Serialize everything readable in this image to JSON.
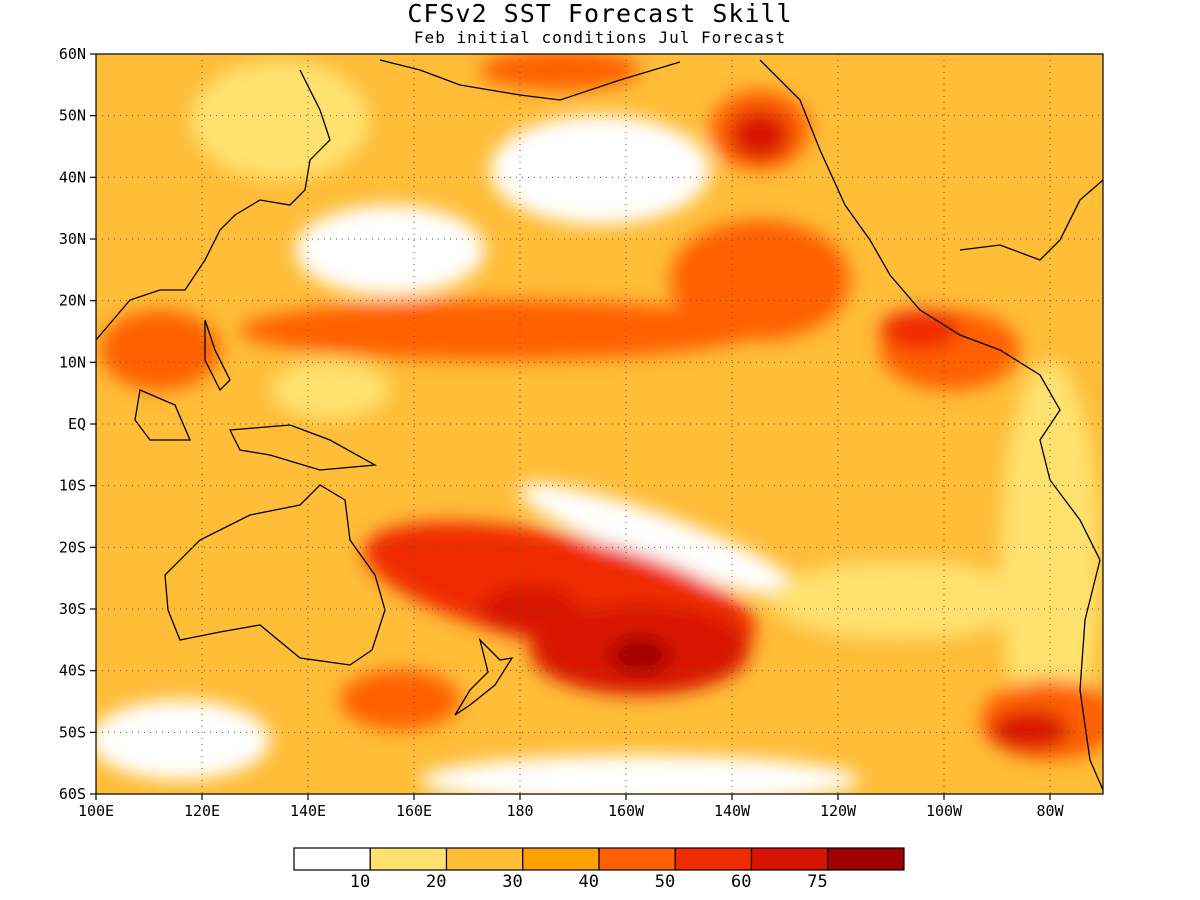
{
  "title": "CFSv2 SST Forecast Skill",
  "subtitle": "Feb initial conditions  Jul Forecast",
  "axes": {
    "lat_labels": [
      "60N",
      "50N",
      "40N",
      "30N",
      "20N",
      "10N",
      "EQ",
      "10S",
      "20S",
      "30S",
      "40S",
      "50S",
      "60S"
    ],
    "lat_values": [
      60,
      50,
      40,
      30,
      20,
      10,
      0,
      -10,
      -20,
      -30,
      -40,
      -50,
      -60
    ],
    "lon_labels": [
      "100E",
      "120E",
      "140E",
      "160E",
      "180",
      "160W",
      "140W",
      "120W",
      "100W",
      "80W"
    ],
    "lon_values": [
      100,
      120,
      140,
      160,
      180,
      200,
      220,
      240,
      260,
      280
    ],
    "lon_range": [
      100,
      290
    ],
    "lat_range": [
      -60,
      60
    ],
    "grid": "dotted"
  },
  "colorbar": {
    "levels": [
      "10",
      "20",
      "30",
      "40",
      "50",
      "60",
      "75"
    ],
    "colors": [
      "#ffffff",
      "#ffe170",
      "#ffbd38",
      "#ffa000",
      "#ff6000",
      "#f02b00",
      "#d81400",
      "#a00000"
    ]
  },
  "colors": {
    "land_outline": "#000000",
    "frame": "#000000"
  }
}
